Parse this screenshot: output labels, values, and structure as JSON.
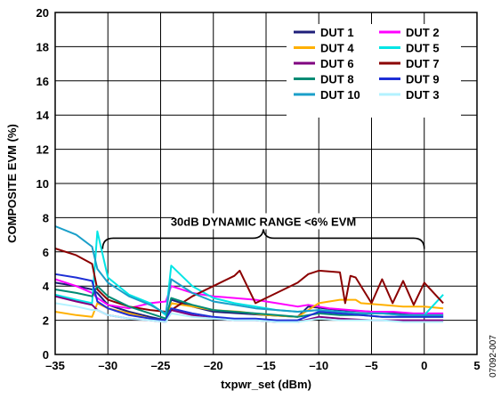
{
  "chart_data": {
    "type": "line",
    "title": "",
    "xlabel": "txpwr_set (dBm)",
    "ylabel": "COMPOSITE EVM (%)",
    "xlim": [
      -35,
      5
    ],
    "ylim": [
      0,
      20
    ],
    "x_ticks": [
      -35,
      -30,
      -25,
      -20,
      -15,
      -10,
      -5,
      0,
      5
    ],
    "x_tick_labels": [
      "–35",
      "–30",
      "–25",
      "–20",
      "–15",
      "–10",
      "–5",
      "0",
      "5"
    ],
    "y_ticks": [
      0,
      2,
      4,
      6,
      8,
      10,
      12,
      14,
      16,
      18,
      20
    ],
    "y_tick_labels": [
      "0",
      "2",
      "4",
      "6",
      "8",
      "10",
      "12",
      "14",
      "16",
      "18",
      "20"
    ],
    "grid": true,
    "legend_position": "top-right",
    "annotation": {
      "text": "30dB DYNAMIC RANGE <6% EVM",
      "x_start": -30.5,
      "x_end": 0,
      "y": 6.8
    },
    "figure_id": "07092-007",
    "series": [
      {
        "name": "DUT 1",
        "color": "#1f1f7a",
        "x": [
          -35,
          -33,
          -31.5,
          -31,
          -30,
          -28,
          -26,
          -24.5,
          -24,
          -22,
          -20,
          -17.5,
          -15,
          -12,
          -11,
          -8,
          -5,
          -2,
          0,
          1.8
        ],
        "y": [
          4.2,
          4.0,
          3.8,
          3.6,
          2.9,
          2.5,
          2.2,
          2.0,
          3.2,
          2.8,
          2.5,
          2.4,
          2.3,
          2.2,
          2.8,
          2.6,
          2.5,
          2.4,
          2.3,
          2.3
        ]
      },
      {
        "name": "DUT 2",
        "color": "#ff00ff",
        "x": [
          -35,
          -33,
          -31.5,
          -31,
          -30,
          -28,
          -26,
          -24.5,
          -24,
          -22,
          -20,
          -18,
          -16,
          -14,
          -12,
          -11,
          -9,
          -7,
          -5,
          -3,
          -1,
          0,
          1.8
        ],
        "y": [
          4.4,
          4.0,
          3.6,
          3.3,
          2.9,
          2.7,
          3.0,
          3.1,
          4.0,
          3.6,
          3.4,
          3.3,
          3.2,
          3.0,
          2.8,
          2.9,
          2.7,
          2.6,
          2.5,
          2.5,
          2.4,
          2.4,
          2.4
        ]
      },
      {
        "name": "DUT 4",
        "color": "#ffb000",
        "x": [
          -35,
          -33,
          -31.5,
          -31,
          -30,
          -28,
          -26,
          -24.5,
          -24,
          -22,
          -20,
          -17.5,
          -15,
          -12,
          -10,
          -8,
          -6.5,
          -6,
          -4,
          -2,
          0,
          1.8
        ],
        "y": [
          2.5,
          2.3,
          2.2,
          3.0,
          2.7,
          2.4,
          2.1,
          2.0,
          3.0,
          2.8,
          2.6,
          2.5,
          2.3,
          2.2,
          3.0,
          3.2,
          3.2,
          3.0,
          2.9,
          2.8,
          2.8,
          2.7
        ]
      },
      {
        "name": "DUT 5",
        "color": "#00e5e5",
        "x": [
          -35,
          -33,
          -31.5,
          -31,
          -30,
          -28,
          -26,
          -24.5,
          -24,
          -22,
          -20,
          -18,
          -16,
          -14,
          -12,
          -10,
          -8,
          -6,
          -4,
          -2,
          0,
          1.8
        ],
        "y": [
          3.5,
          3.2,
          3.0,
          7.2,
          4.5,
          3.5,
          3.0,
          2.3,
          5.2,
          4.0,
          3.3,
          3.0,
          2.8,
          2.6,
          2.5,
          2.6,
          2.5,
          2.4,
          2.4,
          2.3,
          2.3,
          3.5
        ]
      },
      {
        "name": "DUT 6",
        "color": "#800080",
        "x": [
          -35,
          -33,
          -31.5,
          -31,
          -30,
          -28,
          -26,
          -24.5,
          -24,
          -22,
          -20,
          -18,
          -16,
          -14,
          -12,
          -10,
          -8,
          -5,
          -2,
          0,
          1.8
        ],
        "y": [
          3.4,
          3.1,
          2.9,
          2.6,
          2.3,
          2.1,
          2.0,
          1.9,
          2.6,
          2.3,
          2.1,
          2.0,
          2.0,
          1.9,
          1.9,
          2.2,
          2.1,
          2.0,
          2.0,
          2.0,
          2.0
        ]
      },
      {
        "name": "DUT 7",
        "color": "#8b0000",
        "x": [
          -35,
          -33,
          -31.5,
          -31,
          -30,
          -28,
          -26,
          -24.5,
          -24,
          -22,
          -20,
          -18,
          -17.5,
          -16,
          -14,
          -12,
          -11,
          -10,
          -8,
          -7.5,
          -7,
          -6.5,
          -5,
          -4,
          -3,
          -2,
          -1,
          0,
          1.8
        ],
        "y": [
          6.2,
          5.8,
          5.3,
          3.8,
          3.2,
          2.8,
          2.6,
          2.5,
          2.6,
          3.4,
          4.0,
          4.6,
          4.9,
          3.0,
          3.6,
          4.2,
          4.7,
          4.9,
          4.8,
          3.0,
          4.6,
          4.5,
          3.0,
          4.4,
          3.0,
          4.3,
          2.9,
          4.2,
          3.0
        ]
      },
      {
        "name": "DUT 8",
        "color": "#008b74",
        "x": [
          -35,
          -33,
          -31.5,
          -31,
          -30,
          -28,
          -26,
          -24.5,
          -24,
          -22,
          -20,
          -18,
          -16,
          -14,
          -12,
          -10,
          -8,
          -6,
          -4,
          -2,
          0,
          1.8
        ],
        "y": [
          3.8,
          3.6,
          3.4,
          4.0,
          3.4,
          2.8,
          2.4,
          2.1,
          3.3,
          2.9,
          2.6,
          2.5,
          2.4,
          2.3,
          2.2,
          2.4,
          2.3,
          2.3,
          2.2,
          2.2,
          2.2,
          2.2
        ]
      },
      {
        "name": "DUT 9",
        "color": "#1e2fd6",
        "x": [
          -35,
          -33,
          -31.5,
          -31,
          -30,
          -28,
          -26,
          -24.5,
          -24,
          -22,
          -20,
          -18,
          -16,
          -14,
          -12,
          -10,
          -8,
          -6,
          -4,
          -2,
          0,
          1.8
        ],
        "y": [
          4.7,
          4.5,
          4.3,
          3.1,
          2.7,
          2.3,
          2.1,
          2.0,
          2.7,
          2.4,
          2.2,
          2.1,
          2.1,
          2.0,
          2.0,
          2.5,
          2.4,
          2.3,
          2.2,
          2.2,
          2.2,
          2.2
        ]
      },
      {
        "name": "DUT 10",
        "color": "#1a9fc9",
        "x": [
          -35,
          -33,
          -31.5,
          -31,
          -30,
          -28,
          -26,
          -24.5,
          -24,
          -22,
          -20,
          -18,
          -16,
          -14,
          -12,
          -10,
          -8,
          -6,
          -4,
          -2,
          0,
          1.8
        ],
        "y": [
          7.5,
          7.0,
          6.3,
          5.0,
          4.2,
          3.4,
          2.9,
          2.4,
          4.4,
          3.6,
          3.1,
          2.9,
          2.7,
          2.6,
          2.5,
          2.6,
          2.5,
          2.4,
          2.4,
          2.3,
          2.3,
          2.3
        ]
      },
      {
        "name": "DUT 3",
        "color": "#b3f2ff",
        "x": [
          -35,
          -33,
          -31.5,
          -31,
          -30,
          -28,
          -26,
          -24.5,
          -24,
          -22,
          -20,
          -18,
          -16,
          -14,
          -12,
          -10,
          -8,
          -6,
          -4,
          -2,
          0,
          1.8
        ],
        "y": [
          3.0,
          2.8,
          2.6,
          2.6,
          2.3,
          2.1,
          2.0,
          1.9,
          2.4,
          2.2,
          2.1,
          2.0,
          2.0,
          1.9,
          1.9,
          2.1,
          2.0,
          2.0,
          2.0,
          1.9,
          1.9,
          1.9
        ]
      }
    ],
    "legend_order": [
      "DUT 1",
      "DUT 2",
      "DUT 4",
      "DUT 5",
      "DUT 6",
      "DUT 7",
      "DUT 8",
      "DUT 9",
      "DUT 10",
      "DUT 3"
    ]
  }
}
